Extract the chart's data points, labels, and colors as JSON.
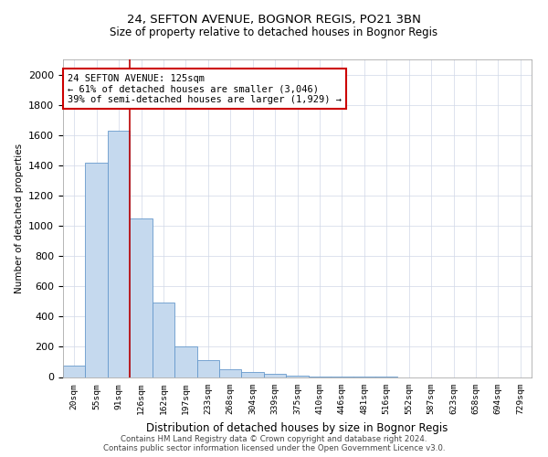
{
  "title1": "24, SEFTON AVENUE, BOGNOR REGIS, PO21 3BN",
  "title2": "Size of property relative to detached houses in Bognor Regis",
  "xlabel": "Distribution of detached houses by size in Bognor Regis",
  "ylabel": "Number of detached properties",
  "categories": [
    "20sqm",
    "55sqm",
    "91sqm",
    "126sqm",
    "162sqm",
    "197sqm",
    "233sqm",
    "268sqm",
    "304sqm",
    "339sqm",
    "375sqm",
    "410sqm",
    "446sqm",
    "481sqm",
    "516sqm",
    "552sqm",
    "587sqm",
    "623sqm",
    "658sqm",
    "694sqm",
    "729sqm"
  ],
  "values": [
    75,
    1420,
    1630,
    1050,
    490,
    205,
    110,
    50,
    35,
    20,
    10,
    5,
    3,
    2,
    1,
    0,
    0,
    0,
    0,
    0,
    0
  ],
  "bar_color": "#c5d9ee",
  "bar_edge_color": "#6699cc",
  "vline_x_index": 2.5,
  "vline_color": "#bb0000",
  "annotation_line1": "24 SEFTON AVENUE: 125sqm",
  "annotation_line2": "← 61% of detached houses are smaller (3,046)",
  "annotation_line3": "39% of semi-detached houses are larger (1,929) →",
  "annotation_box_color": "#cc0000",
  "ylim": [
    0,
    2100
  ],
  "yticks": [
    0,
    200,
    400,
    600,
    800,
    1000,
    1200,
    1400,
    1600,
    1800,
    2000
  ],
  "footer1": "Contains HM Land Registry data © Crown copyright and database right 2024.",
  "footer2": "Contains public sector information licensed under the Open Government Licence v3.0.",
  "bg_color": "#ffffff",
  "grid_color": "#d0d8e8"
}
